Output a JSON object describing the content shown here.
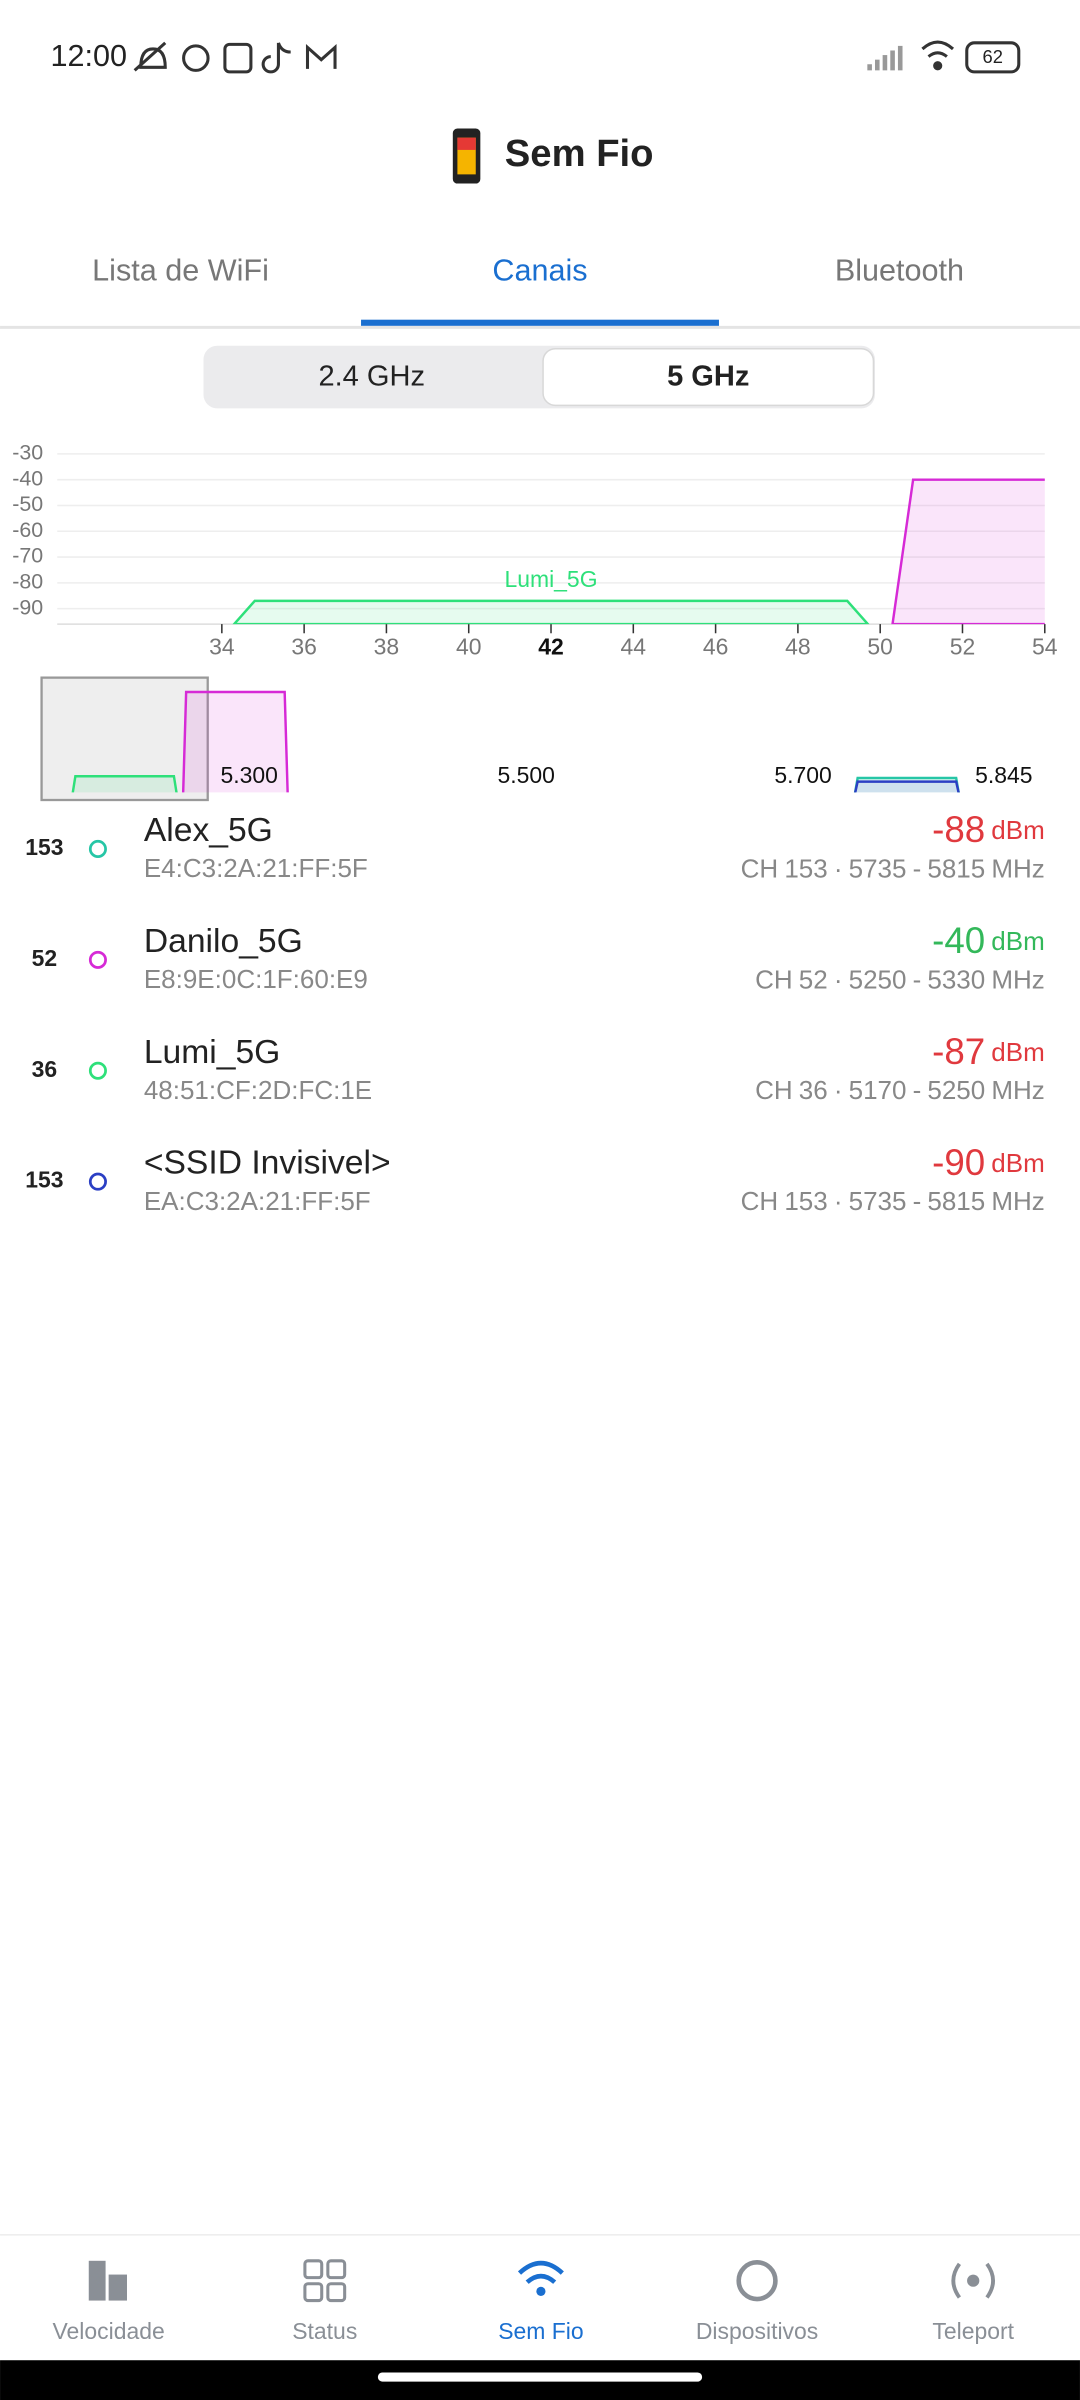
{
  "status_bar": {
    "time": "12:00",
    "battery": "62"
  },
  "header": {
    "title": "Sem Fio"
  },
  "tabs": {
    "items": [
      "Lista de WiFi",
      "Canais",
      "Bluetooth"
    ],
    "active": 1
  },
  "band_toggle": {
    "items": [
      "2.4 GHz",
      "5 GHz"
    ],
    "selected": 1
  },
  "channel_chart": {
    "ylim": [
      -96,
      -26
    ],
    "yticks": [
      -30,
      -40,
      -50,
      -60,
      -70,
      -80,
      -90
    ],
    "xlim": [
      30,
      54
    ],
    "xticks": [
      34,
      36,
      38,
      40,
      42,
      44,
      46,
      48,
      50,
      52,
      54
    ],
    "highlight": 42,
    "grid": true
  },
  "overview": {
    "xlim": [
      5120,
      5900
    ],
    "xticks": [
      {
        "value": 5300,
        "label": "5.300"
      },
      {
        "value": 5500,
        "label": "5.500"
      },
      {
        "value": 5700,
        "label": "5.700"
      },
      {
        "value": 5845,
        "label": "5.845"
      }
    ]
  },
  "networks": {
    "channel_prefix": "CH",
    "dot": "·",
    "dash": "-",
    "freq_unit": "MHz",
    "level_unit": "dBm",
    "items": [
      {
        "channel": 153,
        "name": "Alex_5G",
        "bssid": "E4:C3:2A:21:FF:5F",
        "level": -88,
        "freq_start": 5735,
        "freq_end": 5815,
        "color": "#26c6a6",
        "level_color": "#e0393e"
      },
      {
        "channel": 52,
        "name": "Danilo_5G",
        "bssid": "E8:9E:0C:1F:60:E9",
        "level": -40,
        "freq_start": 5250,
        "freq_end": 5330,
        "color": "#d62ad6",
        "level_color": "#33b85a"
      },
      {
        "channel": 36,
        "name": "Lumi_5G",
        "bssid": "48:51:CF:2D:FC:1E",
        "level": -87,
        "freq_start": 5170,
        "freq_end": 5250,
        "color": "#2ee07a",
        "level_color": "#e0393e"
      },
      {
        "channel": 153,
        "name": "<SSID Invisivel>",
        "bssid": "EA:C3:2A:21:FF:5F",
        "level": -90,
        "freq_start": 5735,
        "freq_end": 5815,
        "color": "#2b3fc4",
        "level_color": "#e0393e"
      }
    ]
  },
  "bottom_nav": {
    "items": [
      "Velocidade",
      "Status",
      "Sem Fio",
      "Dispositivos",
      "Teleport"
    ],
    "active": 2
  }
}
